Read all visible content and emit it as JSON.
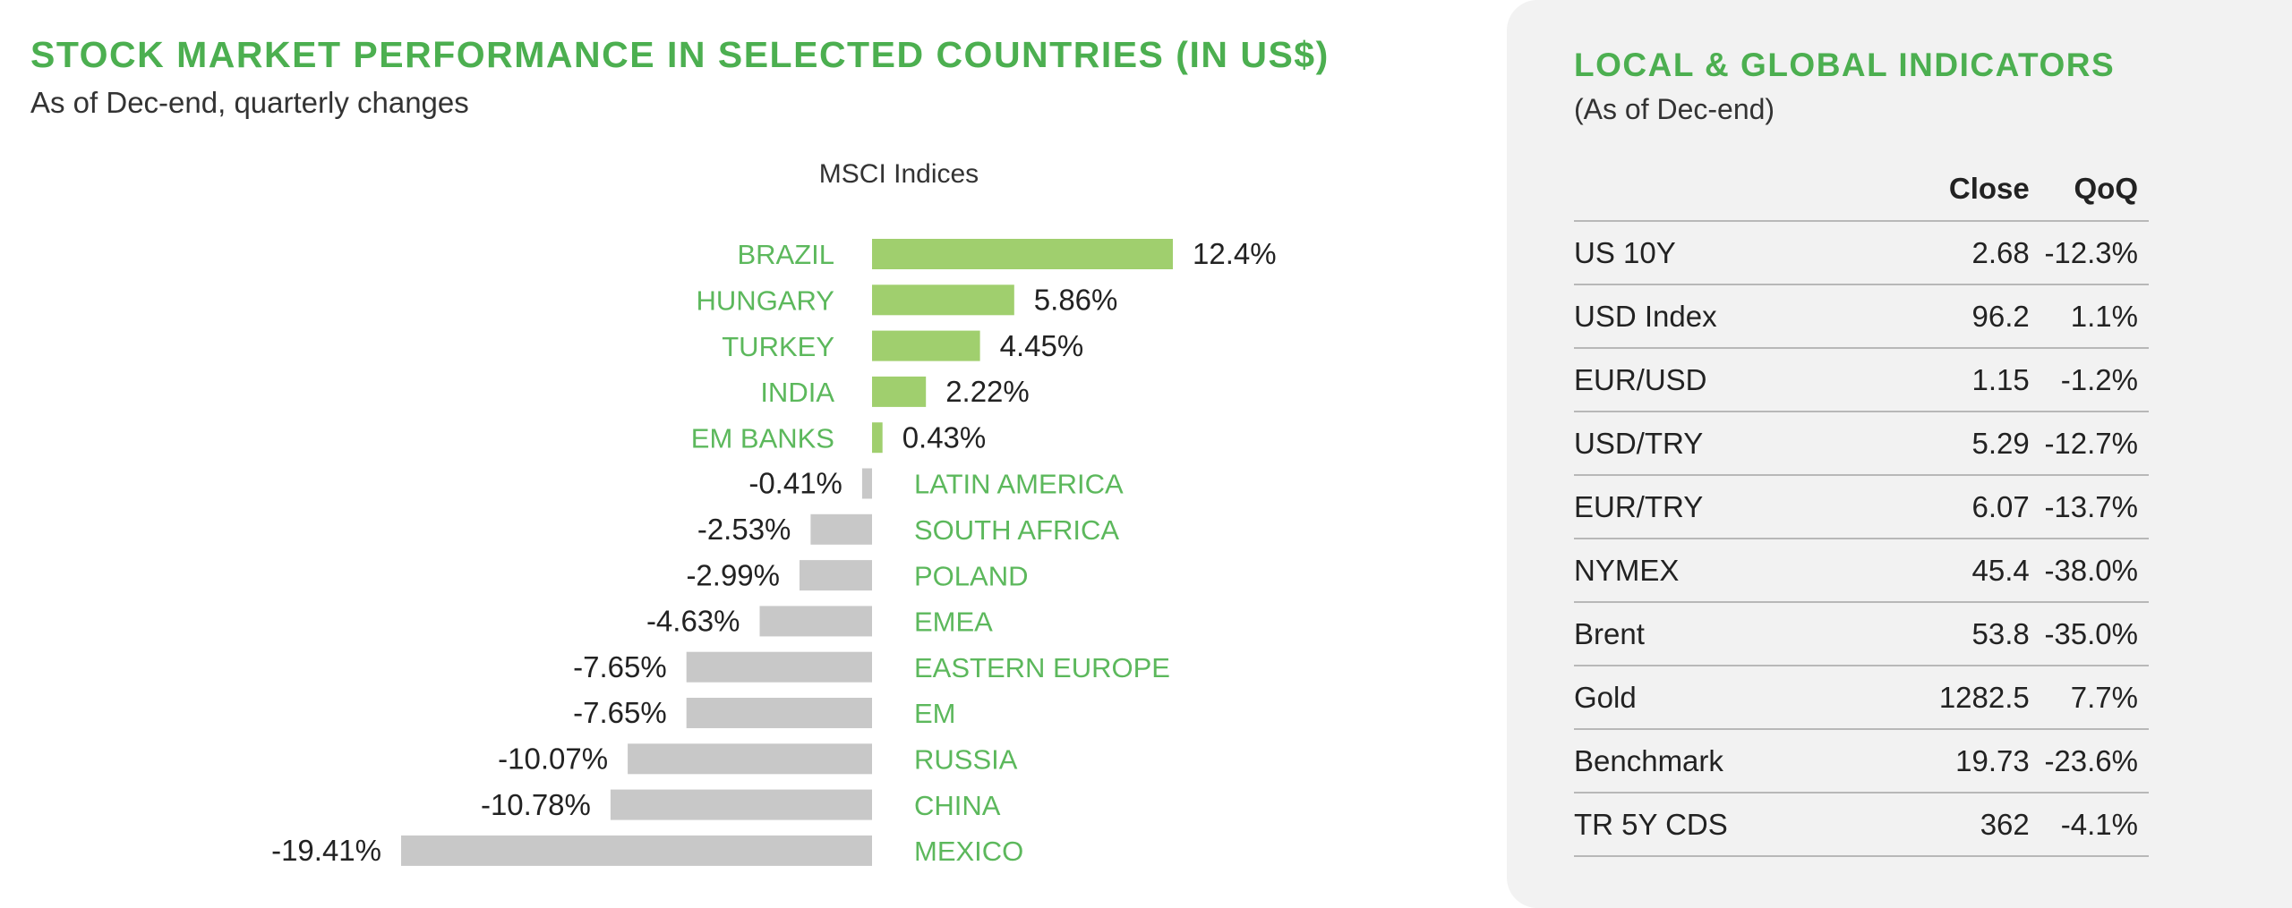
{
  "chart": {
    "title": "STOCK MARKET PERFORMANCE IN SELECTED COUNTRIES (IN US$)",
    "subtitle": "As of Dec-end, quarterly changes"
  },
  "chart_data": {
    "type": "bar",
    "orientation": "horizontal",
    "title": "MSCI Indices",
    "categories": [
      "BRAZIL",
      "HUNGARY",
      "TURKEY",
      "INDIA",
      "EM BANKS",
      "LATIN AMERICA",
      "SOUTH AFRICA",
      "POLAND",
      "EMEA",
      "EASTERN EUROPE",
      "EM",
      "RUSSIA",
      "CHINA",
      "MEXICO"
    ],
    "values": [
      12.4,
      5.86,
      4.45,
      2.22,
      0.43,
      -0.41,
      -2.53,
      -2.99,
      -4.63,
      -7.65,
      -7.65,
      -10.07,
      -10.78,
      -19.41
    ],
    "data_labels": [
      "12.4%",
      "5.86%",
      "4.45%",
      "2.22%",
      "0.43%",
      "-0.41%",
      "-2.53%",
      "-2.99%",
      "-4.63%",
      "-7.65%",
      "-7.65%",
      "-10.07%",
      "-10.78%",
      "-19.41%"
    ],
    "colors": {
      "positive": "#a0cf6e",
      "negative": "#c8c8c8",
      "category_label": "#5cb85c"
    },
    "grid": false,
    "legend": "none"
  },
  "indicators": {
    "title": "LOCAL & GLOBAL INDICATORS",
    "subtitle": "(As of Dec-end)",
    "columns": [
      "",
      "Close",
      "QoQ"
    ],
    "rows": [
      {
        "name": "US 10Y",
        "close": "2.68",
        "qoq": "-12.3%"
      },
      {
        "name": "USD Index",
        "close": "96.2",
        "qoq": "1.1%"
      },
      {
        "name": "EUR/USD",
        "close": "1.15",
        "qoq": "-1.2%"
      },
      {
        "name": "USD/TRY",
        "close": "5.29",
        "qoq": "-12.7%"
      },
      {
        "name": "EUR/TRY",
        "close": "6.07",
        "qoq": "-13.7%"
      },
      {
        "name": "NYMEX",
        "close": "45.4",
        "qoq": "-38.0%"
      },
      {
        "name": "Brent",
        "close": "53.8",
        "qoq": "-35.0%"
      },
      {
        "name": "Gold",
        "close": "1282.5",
        "qoq": "7.7%"
      },
      {
        "name": "Benchmark",
        "close": "19.73",
        "qoq": "-23.6%"
      },
      {
        "name": "TR 5Y CDS",
        "close": "362",
        "qoq": "-4.1%"
      }
    ]
  }
}
